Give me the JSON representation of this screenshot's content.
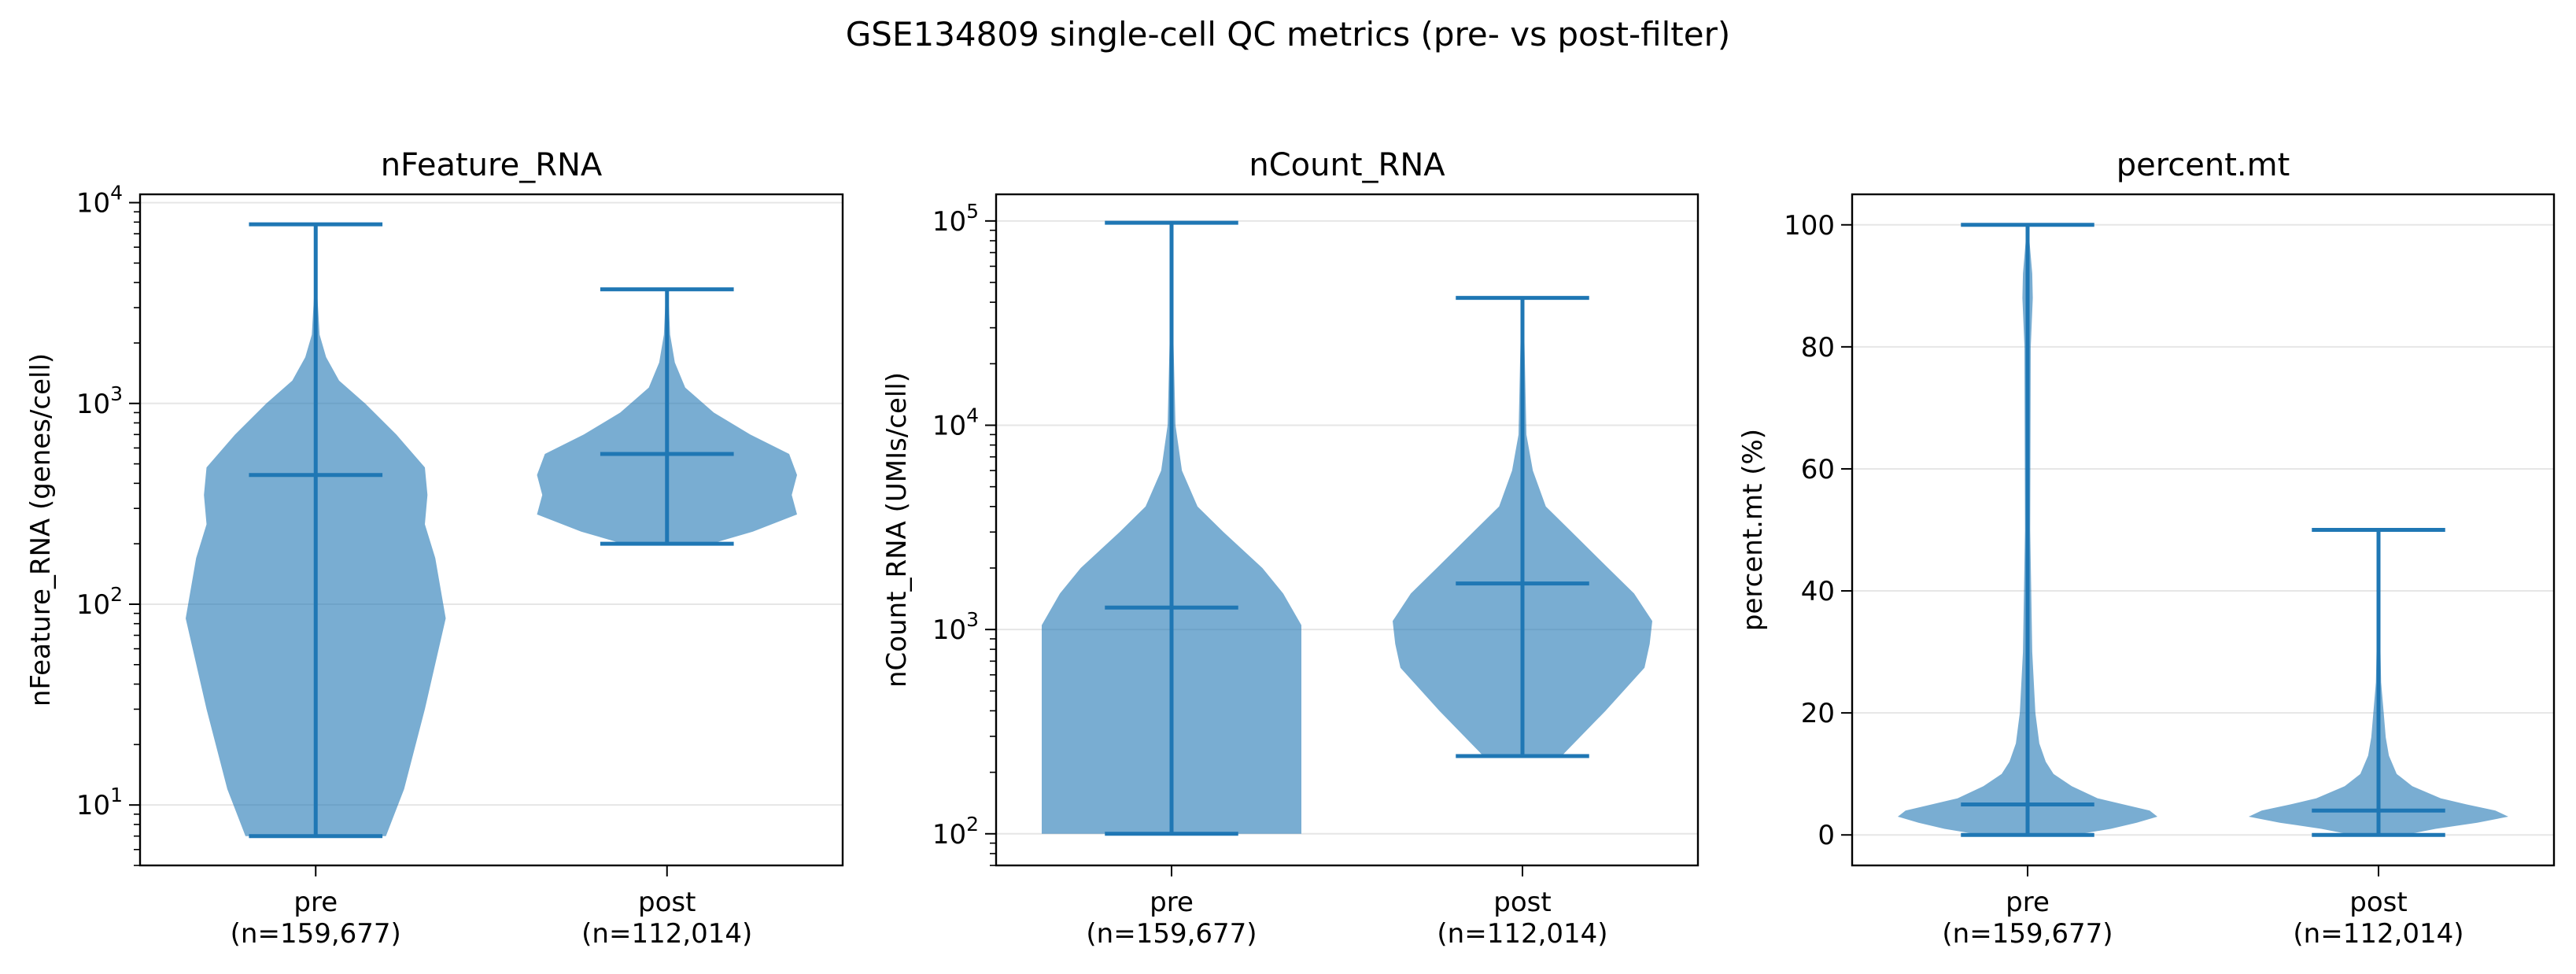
{
  "figure": {
    "suptitle": "GSE134809 single-cell QC metrics (pre- vs post-filter)"
  },
  "style": {
    "violin_fill": "#1f77b4",
    "violin_alpha": 0.6,
    "line_color": "#1f77b4",
    "grid_color": "#e6e6e6"
  },
  "chart_data": [
    {
      "type": "violin",
      "title": "nFeature_RNA",
      "ylabel": "nFeature_RNA (genes/cell)",
      "yscale": "log",
      "ylim": [
        5,
        11000
      ],
      "yticks": [
        {
          "v": 10,
          "label": "10",
          "sup": "1"
        },
        {
          "v": 100,
          "label": "10",
          "sup": "2"
        },
        {
          "v": 1000,
          "label": "10",
          "sup": "3"
        },
        {
          "v": 10000,
          "label": "10",
          "sup": "4"
        }
      ],
      "grid": true,
      "categories": [
        {
          "name": "pre",
          "n": "(n=159,677)"
        },
        {
          "name": "post",
          "n": "(n=112,014)"
        }
      ],
      "violins": [
        {
          "min": 7,
          "median": 440,
          "max": 7800,
          "profile": [
            [
              7,
              0.27
            ],
            [
              12,
              0.34
            ],
            [
              30,
              0.42
            ],
            [
              85,
              0.5
            ],
            [
              170,
              0.46
            ],
            [
              250,
              0.42
            ],
            [
              350,
              0.43
            ],
            [
              480,
              0.42
            ],
            [
              700,
              0.31
            ],
            [
              1000,
              0.19
            ],
            [
              1300,
              0.09
            ],
            [
              1700,
              0.04
            ],
            [
              2200,
              0.015
            ],
            [
              3500,
              0.006
            ],
            [
              7800,
              0.004
            ]
          ]
        },
        {
          "min": 200,
          "median": 560,
          "max": 3700,
          "profile": [
            [
              200,
              0.17
            ],
            [
              230,
              0.33
            ],
            [
              280,
              0.5
            ],
            [
              350,
              0.48
            ],
            [
              440,
              0.5
            ],
            [
              560,
              0.47
            ],
            [
              700,
              0.32
            ],
            [
              900,
              0.18
            ],
            [
              1200,
              0.07
            ],
            [
              1600,
              0.03
            ],
            [
              2200,
              0.012
            ],
            [
              3700,
              0.004
            ]
          ]
        }
      ]
    },
    {
      "type": "violin",
      "title": "nCount_RNA",
      "ylabel": "nCount_RNA (UMIs/cell)",
      "yscale": "log",
      "ylim": [
        70,
        135000
      ],
      "yticks": [
        {
          "v": 100,
          "label": "10",
          "sup": "2"
        },
        {
          "v": 1000,
          "label": "10",
          "sup": "3"
        },
        {
          "v": 10000,
          "label": "10",
          "sup": "4"
        },
        {
          "v": 100000,
          "label": "10",
          "sup": "5"
        }
      ],
      "grid": true,
      "categories": [
        {
          "name": "pre",
          "n": "(n=159,677)"
        },
        {
          "name": "post",
          "n": "(n=112,014)"
        }
      ],
      "violins": [
        {
          "min": 100,
          "median": 1280,
          "max": 98000,
          "profile": [
            [
              100,
              0.5
            ],
            [
              300,
              0.5
            ],
            [
              700,
              0.5
            ],
            [
              1050,
              0.5
            ],
            [
              1500,
              0.43
            ],
            [
              2000,
              0.35
            ],
            [
              3000,
              0.2
            ],
            [
              4000,
              0.1
            ],
            [
              6000,
              0.04
            ],
            [
              10000,
              0.015
            ],
            [
              30000,
              0.006
            ],
            [
              98000,
              0.004
            ]
          ]
        },
        {
          "min": 240,
          "median": 1680,
          "max": 42000,
          "profile": [
            [
              240,
              0.15
            ],
            [
              400,
              0.32
            ],
            [
              650,
              0.47
            ],
            [
              850,
              0.49
            ],
            [
              1100,
              0.5
            ],
            [
              1500,
              0.43
            ],
            [
              2000,
              0.33
            ],
            [
              3000,
              0.19
            ],
            [
              4000,
              0.09
            ],
            [
              6000,
              0.04
            ],
            [
              9000,
              0.015
            ],
            [
              42000,
              0.004
            ]
          ]
        }
      ]
    },
    {
      "type": "violin",
      "title": "percent.mt",
      "ylabel": "percent.mt (%)",
      "yscale": "linear",
      "ylim": [
        -5,
        105
      ],
      "yticks": [
        {
          "v": 0,
          "label": "0"
        },
        {
          "v": 20,
          "label": "20"
        },
        {
          "v": 40,
          "label": "40"
        },
        {
          "v": 60,
          "label": "60"
        },
        {
          "v": 80,
          "label": "80"
        },
        {
          "v": 100,
          "label": "100"
        }
      ],
      "grid": true,
      "categories": [
        {
          "name": "pre",
          "n": "(n=159,677)"
        },
        {
          "name": "post",
          "n": "(n=112,014)"
        }
      ],
      "violins": [
        {
          "min": 0,
          "median": 5,
          "max": 100,
          "profile": [
            [
              0,
              0.18
            ],
            [
              1,
              0.32
            ],
            [
              2,
              0.42
            ],
            [
              3,
              0.5
            ],
            [
              4,
              0.47
            ],
            [
              5,
              0.37
            ],
            [
              6,
              0.27
            ],
            [
              8,
              0.17
            ],
            [
              10,
              0.1
            ],
            [
              12,
              0.07
            ],
            [
              15,
              0.045
            ],
            [
              20,
              0.03
            ],
            [
              30,
              0.018
            ],
            [
              50,
              0.01
            ],
            [
              80,
              0.012
            ],
            [
              88,
              0.02
            ],
            [
              92,
              0.018
            ],
            [
              97,
              0.008
            ],
            [
              100,
              0.004
            ]
          ]
        },
        {
          "min": 0,
          "median": 4,
          "max": 50,
          "profile": [
            [
              0,
              0.1
            ],
            [
              1,
              0.22
            ],
            [
              2,
              0.38
            ],
            [
              3,
              0.5
            ],
            [
              4,
              0.45
            ],
            [
              5,
              0.34
            ],
            [
              6,
              0.24
            ],
            [
              8,
              0.13
            ],
            [
              10,
              0.07
            ],
            [
              13,
              0.04
            ],
            [
              16,
              0.028
            ],
            [
              20,
              0.02
            ],
            [
              25,
              0.01
            ],
            [
              35,
              0.005
            ],
            [
              50,
              0.003
            ]
          ]
        }
      ]
    }
  ]
}
